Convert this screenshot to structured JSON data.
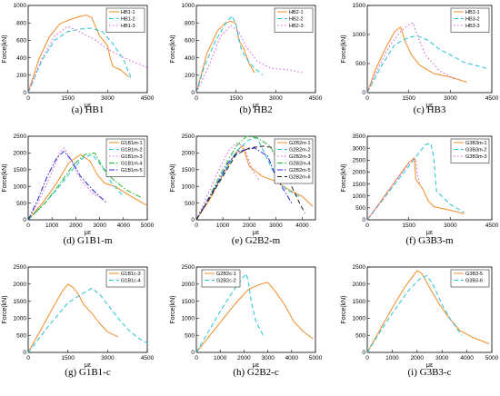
{
  "chart_data": [
    {
      "type": "line",
      "caption": "(a) HB1",
      "ylabel": "Force(kN)",
      "xlabel": "με",
      "xlim": [
        0,
        4500
      ],
      "ylim": [
        0,
        1000
      ],
      "xticks": [
        0,
        1500,
        3000,
        4500
      ],
      "yticks": [
        0,
        200,
        400,
        600,
        800,
        1000
      ],
      "legend_position": "top-right",
      "series": [
        {
          "name": "HB1-1",
          "color": "#f28c28",
          "dash": "solid",
          "x": [
            0,
            400,
            800,
            1200,
            1600,
            1900,
            2200,
            2400,
            2700,
            3000,
            3100,
            3200,
            3500,
            3800
          ],
          "y": [
            0,
            380,
            640,
            790,
            840,
            870,
            890,
            860,
            650,
            540,
            400,
            300,
            260,
            180
          ]
        },
        {
          "name": "HB1-2",
          "color": "#22c4d8",
          "dash": "dashed",
          "x": [
            0,
            500,
            1000,
            1500,
            2000,
            2400,
            2800,
            3200,
            3600,
            3900
          ],
          "y": [
            0,
            360,
            600,
            700,
            730,
            740,
            700,
            560,
            380,
            160
          ]
        },
        {
          "name": "HB1-3",
          "color": "#d458d8",
          "dash": "dotted",
          "x": [
            0,
            500,
            1000,
            1500,
            2000,
            2500,
            3000,
            3500,
            4000,
            4500
          ],
          "y": [
            0,
            380,
            650,
            760,
            690,
            610,
            500,
            420,
            350,
            290
          ]
        }
      ]
    },
    {
      "type": "line",
      "caption": "(b) HB2",
      "ylabel": "Force(kN)",
      "xlabel": "με",
      "xlim": [
        0,
        4500
      ],
      "ylim": [
        0,
        1000
      ],
      "xticks": [
        0,
        1500,
        3000,
        4500
      ],
      "yticks": [
        0,
        200,
        400,
        600,
        800,
        1000
      ],
      "legend_position": "top-right",
      "series": [
        {
          "name": "HB2-1",
          "color": "#f28c28",
          "dash": "solid",
          "x": [
            0,
            400,
            800,
            1100,
            1300,
            1500,
            1600,
            1800,
            2000,
            2200
          ],
          "y": [
            0,
            450,
            710,
            800,
            820,
            790,
            600,
            500,
            330,
            230
          ]
        },
        {
          "name": "HB2-2",
          "color": "#22c4d8",
          "dash": "dashed",
          "x": [
            0,
            300,
            700,
            1100,
            1350,
            1500,
            1700,
            2000,
            2500
          ],
          "y": [
            0,
            300,
            580,
            790,
            880,
            780,
            490,
            340,
            200
          ]
        },
        {
          "name": "HB2-3",
          "color": "#d458d8",
          "dash": "dotted",
          "x": [
            0,
            500,
            900,
            1300,
            1600,
            1900,
            2300,
            2800,
            3500,
            4000
          ],
          "y": [
            0,
            330,
            640,
            770,
            700,
            520,
            360,
            280,
            260,
            230
          ]
        }
      ]
    },
    {
      "type": "line",
      "caption": "(c) HB3",
      "ylabel": "Force(kN)",
      "xlabel": "με",
      "xlim": [
        0,
        4500
      ],
      "ylim": [
        0,
        1500
      ],
      "xticks": [
        0,
        1500,
        3000,
        4500
      ],
      "yticks": [
        0,
        500,
        1000,
        1500
      ],
      "legend_position": "top-right",
      "series": [
        {
          "name": "HB3-1",
          "color": "#f28c28",
          "dash": "solid",
          "x": [
            0,
            300,
            700,
            1000,
            1200,
            1400,
            1600,
            1900,
            2400,
            3000,
            3600
          ],
          "y": [
            0,
            400,
            800,
            1050,
            1130,
            850,
            650,
            470,
            330,
            270,
            180
          ]
        },
        {
          "name": "HB3-2",
          "color": "#22c4d8",
          "dash": "dashed",
          "x": [
            0,
            500,
            1000,
            1500,
            1800,
            2200,
            2600,
            3000,
            3500,
            4300
          ],
          "y": [
            0,
            450,
            830,
            950,
            980,
            900,
            750,
            650,
            520,
            420
          ]
        },
        {
          "name": "HB3-3",
          "color": "#d458d8",
          "dash": "dotted",
          "x": [
            0,
            400,
            800,
            1200,
            1500,
            1650,
            1800,
            2100,
            2600,
            3200
          ],
          "y": [
            0,
            430,
            800,
            1050,
            1170,
            1200,
            1000,
            650,
            380,
            220
          ]
        }
      ]
    },
    {
      "type": "line",
      "caption": "(d) G1B1-m",
      "ylabel": "Force(kN)",
      "xlabel": "με",
      "xlim": [
        0,
        5000
      ],
      "ylim": [
        0,
        2500
      ],
      "xticks": [
        0,
        1000,
        2000,
        3000,
        4000,
        5000
      ],
      "yticks": [
        0,
        500,
        1000,
        1500,
        2000,
        2500
      ],
      "legend_position": "top-right",
      "series": [
        {
          "name": "G1B1m-1",
          "color": "#f28c28",
          "dash": "solid",
          "x": [
            0,
            600,
            1200,
            1700,
            2200,
            2600,
            2900,
            3200,
            3700,
            4200,
            4700,
            5000
          ],
          "y": [
            0,
            500,
            1100,
            1700,
            1950,
            1750,
            1350,
            1100,
            980,
            750,
            550,
            420
          ]
        },
        {
          "name": "G1B1m-2",
          "color": "#22c4d8",
          "dash": "dashed",
          "x": [
            0,
            600,
            1200,
            1800,
            2300,
            2700,
            3100,
            3500,
            4000
          ],
          "y": [
            0,
            420,
            900,
            1450,
            1850,
            1950,
            1600,
            1100,
            700
          ]
        },
        {
          "name": "G1B1m-3",
          "color": "#d458d8",
          "dash": "dotted",
          "x": [
            0,
            400,
            800,
            1100,
            1300,
            1500,
            1800,
            2200,
            2700,
            3200
          ],
          "y": [
            0,
            500,
            1100,
            1600,
            2000,
            2150,
            1800,
            1200,
            800,
            600
          ]
        },
        {
          "name": "G1B1m-4",
          "color": "#2fb52f",
          "dash": "dashdot",
          "x": [
            0,
            700,
            1300,
            1900,
            2400,
            2800,
            3100,
            3500,
            4100,
            4800
          ],
          "y": [
            0,
            500,
            1050,
            1650,
            1960,
            2000,
            1600,
            1250,
            900,
            650
          ]
        },
        {
          "name": "G1B1m-5",
          "color": "#2626d6",
          "dash": "dashdot",
          "x": [
            0,
            400,
            800,
            1200,
            1500,
            1800,
            2200,
            2700,
            3300
          ],
          "y": [
            0,
            600,
            1300,
            1850,
            2050,
            1800,
            1300,
            900,
            500
          ]
        }
      ]
    },
    {
      "type": "line",
      "caption": "(e) G2B2-m",
      "ylabel": "Force(kN)",
      "xlabel": "με",
      "xlim": [
        0,
        4500
      ],
      "ylim": [
        0,
        2500
      ],
      "xticks": [
        0,
        1000,
        2000,
        3000,
        4000
      ],
      "yticks": [
        0,
        500,
        1000,
        1500,
        2000,
        2500
      ],
      "legend_position": "top-right",
      "series": [
        {
          "name": "G2B2m-1",
          "color": "#f28c28",
          "dash": "solid",
          "x": [
            0,
            500,
            1000,
            1400,
            1700,
            1800,
            2000,
            2500,
            3000,
            3500,
            4000,
            4400
          ],
          "y": [
            0,
            600,
            1350,
            1900,
            2200,
            2100,
            1600,
            1300,
            1150,
            900,
            700,
            400
          ]
        },
        {
          "name": "G2B2m-2",
          "color": "#22c4d8",
          "dash": "dashed",
          "x": [
            0,
            500,
            1000,
            1500,
            2000,
            2300,
            2600,
            3000,
            3400,
            3900
          ],
          "y": [
            0,
            650,
            1350,
            2050,
            2400,
            2450,
            1950,
            1300,
            900,
            700
          ]
        },
        {
          "name": "G2B2m-3",
          "color": "#d458d8",
          "dash": "dotted",
          "x": [
            0,
            400,
            800,
            1200,
            1500,
            1800,
            2100,
            2400
          ],
          "y": [
            0,
            700,
            1400,
            2050,
            2300,
            2200,
            1500,
            1150
          ]
        },
        {
          "name": "G2B2m-4",
          "color": "#2fb52f",
          "dash": "dashdot",
          "x": [
            0,
            500,
            1000,
            1500,
            1900,
            2300,
            2800,
            3100,
            3500
          ],
          "y": [
            0,
            700,
            1500,
            2200,
            2500,
            2450,
            2200,
            1700,
            1200
          ]
        },
        {
          "name": "G2B2m-5",
          "color": "#2626d6",
          "dash": "dashdot",
          "x": [
            0,
            400,
            800,
            1200,
            1600,
            2200,
            2700,
            3000,
            3300,
            3600
          ],
          "y": [
            0,
            550,
            1100,
            1700,
            2050,
            2150,
            1900,
            1300,
            900,
            500
          ]
        },
        {
          "name": "G2B2m-6",
          "color": "#222222",
          "dash": "dashed",
          "x": [
            0,
            500,
            1000,
            1500,
            2000,
            2500,
            3000,
            3300,
            3600,
            3900,
            4100
          ],
          "y": [
            0,
            650,
            1300,
            1950,
            2150,
            2200,
            2150,
            1800,
            1000,
            500,
            200
          ]
        }
      ]
    },
    {
      "type": "line",
      "caption": "(f) G3B3-m",
      "ylabel": "Force(kN)",
      "xlabel": "με",
      "xlim": [
        0,
        4500
      ],
      "ylim": [
        0,
        3500
      ],
      "xticks": [
        0,
        1500,
        3000,
        4500
      ],
      "yticks": [
        0,
        500,
        1000,
        1500,
        2000,
        2500,
        3000,
        3500
      ],
      "legend_position": "top-right",
      "series": [
        {
          "name": "G3B3m-1",
          "color": "#f28c28",
          "dash": "solid",
          "x": [
            0,
            500,
            1000,
            1500,
            1700,
            1750,
            2000,
            2200,
            2400,
            3000,
            3500
          ],
          "y": [
            0,
            800,
            1600,
            2400,
            2600,
            1700,
            1300,
            800,
            550,
            400,
            250
          ]
        },
        {
          "name": "G3B3m-2",
          "color": "#22c4d8",
          "dash": "dashed",
          "x": [
            0,
            600,
            1200,
            1700,
            2100,
            2300,
            2400,
            2500,
            3000,
            3500
          ],
          "y": [
            0,
            900,
            1800,
            2550,
            3150,
            3200,
            2600,
            1200,
            650,
            300
          ]
        },
        {
          "name": "G3B3m-3",
          "color": "#d458d8",
          "dash": "dotted",
          "x": [
            0,
            500,
            1000,
            1500,
            1750,
            1800,
            1900
          ],
          "y": [
            0,
            750,
            1600,
            2350,
            2550,
            2000,
            1450
          ]
        }
      ]
    },
    {
      "type": "line",
      "caption": "(g) G1B1-c",
      "ylabel": "Force(kN)",
      "xlabel": "με",
      "xlim": [
        0,
        4500
      ],
      "ylim": [
        0,
        2500
      ],
      "xticks": [
        0,
        1500,
        3000,
        4500
      ],
      "yticks": [
        0,
        500,
        1000,
        1500,
        2000,
        2500
      ],
      "legend_position": "top-right",
      "series": [
        {
          "name": "G1B1c-3",
          "color": "#f28c28",
          "dash": "solid",
          "x": [
            0,
            500,
            1000,
            1300,
            1500,
            1700,
            1900,
            2100,
            2400,
            2700,
            3000,
            3400
          ],
          "y": [
            0,
            700,
            1400,
            1800,
            2000,
            1900,
            1700,
            1400,
            1150,
            850,
            600,
            450
          ]
        },
        {
          "name": "G1B1c-4",
          "color": "#22c4d8",
          "dash": "dashed",
          "x": [
            0,
            800,
            1500,
            2000,
            2400,
            2700,
            3000,
            3400,
            3800,
            4200,
            4500
          ],
          "y": [
            0,
            800,
            1450,
            1700,
            1880,
            1700,
            1400,
            1000,
            650,
            400,
            280
          ]
        }
      ]
    },
    {
      "type": "line",
      "caption": "(h) G2B2-c",
      "ylabel": "Force(kN)",
      "xlabel": "με",
      "xlim": [
        0,
        5000
      ],
      "ylim": [
        0,
        2500
      ],
      "xticks": [
        0,
        1000,
        2000,
        3000,
        4000,
        5000
      ],
      "yticks": [
        0,
        500,
        1000,
        1500,
        2000,
        2500
      ],
      "legend_position": "top-left",
      "series": [
        {
          "name": "G2B2c-1",
          "color": "#f28c28",
          "dash": "solid",
          "x": [
            0,
            800,
            1600,
            2200,
            2700,
            3000,
            3300,
            3700,
            4100,
            4500,
            4900
          ],
          "y": [
            0,
            700,
            1400,
            1850,
            2000,
            2050,
            1800,
            1400,
            900,
            600,
            400
          ]
        },
        {
          "name": "G2B2c-2",
          "color": "#22c4d8",
          "dash": "dashed",
          "x": [
            0,
            500,
            1000,
            1500,
            1900,
            2100,
            2200,
            2300,
            2500,
            2800
          ],
          "y": [
            0,
            600,
            1200,
            1750,
            2150,
            2300,
            2000,
            1500,
            900,
            500
          ]
        }
      ]
    },
    {
      "type": "line",
      "caption": "(i) G3B3-c",
      "ylabel": "Force(kN)",
      "xlabel": "με",
      "xlim": [
        0,
        5000
      ],
      "ylim": [
        0,
        2500
      ],
      "xticks": [
        0,
        1000,
        2000,
        3000,
        4000,
        5000
      ],
      "yticks": [
        0,
        500,
        1000,
        1500,
        2000,
        2500
      ],
      "legend_position": "top-right",
      "series": [
        {
          "name": "G3B3-5",
          "color": "#f28c28",
          "dash": "solid",
          "x": [
            0,
            500,
            1000,
            1500,
            1800,
            2000,
            2200,
            2500,
            2900,
            3300,
            3700,
            4200,
            4900
          ],
          "y": [
            0,
            650,
            1300,
            1900,
            2200,
            2400,
            2300,
            1900,
            1400,
            1000,
            650,
            450,
            250
          ]
        },
        {
          "name": "G3B3-6",
          "color": "#22c4d8",
          "dash": "dashed",
          "x": [
            0,
            600,
            1200,
            1700,
            2100,
            2400,
            2700,
            3000,
            3400,
            3800
          ],
          "y": [
            0,
            700,
            1350,
            1850,
            2150,
            2250,
            1900,
            1400,
            900,
            500
          ]
        }
      ]
    }
  ]
}
